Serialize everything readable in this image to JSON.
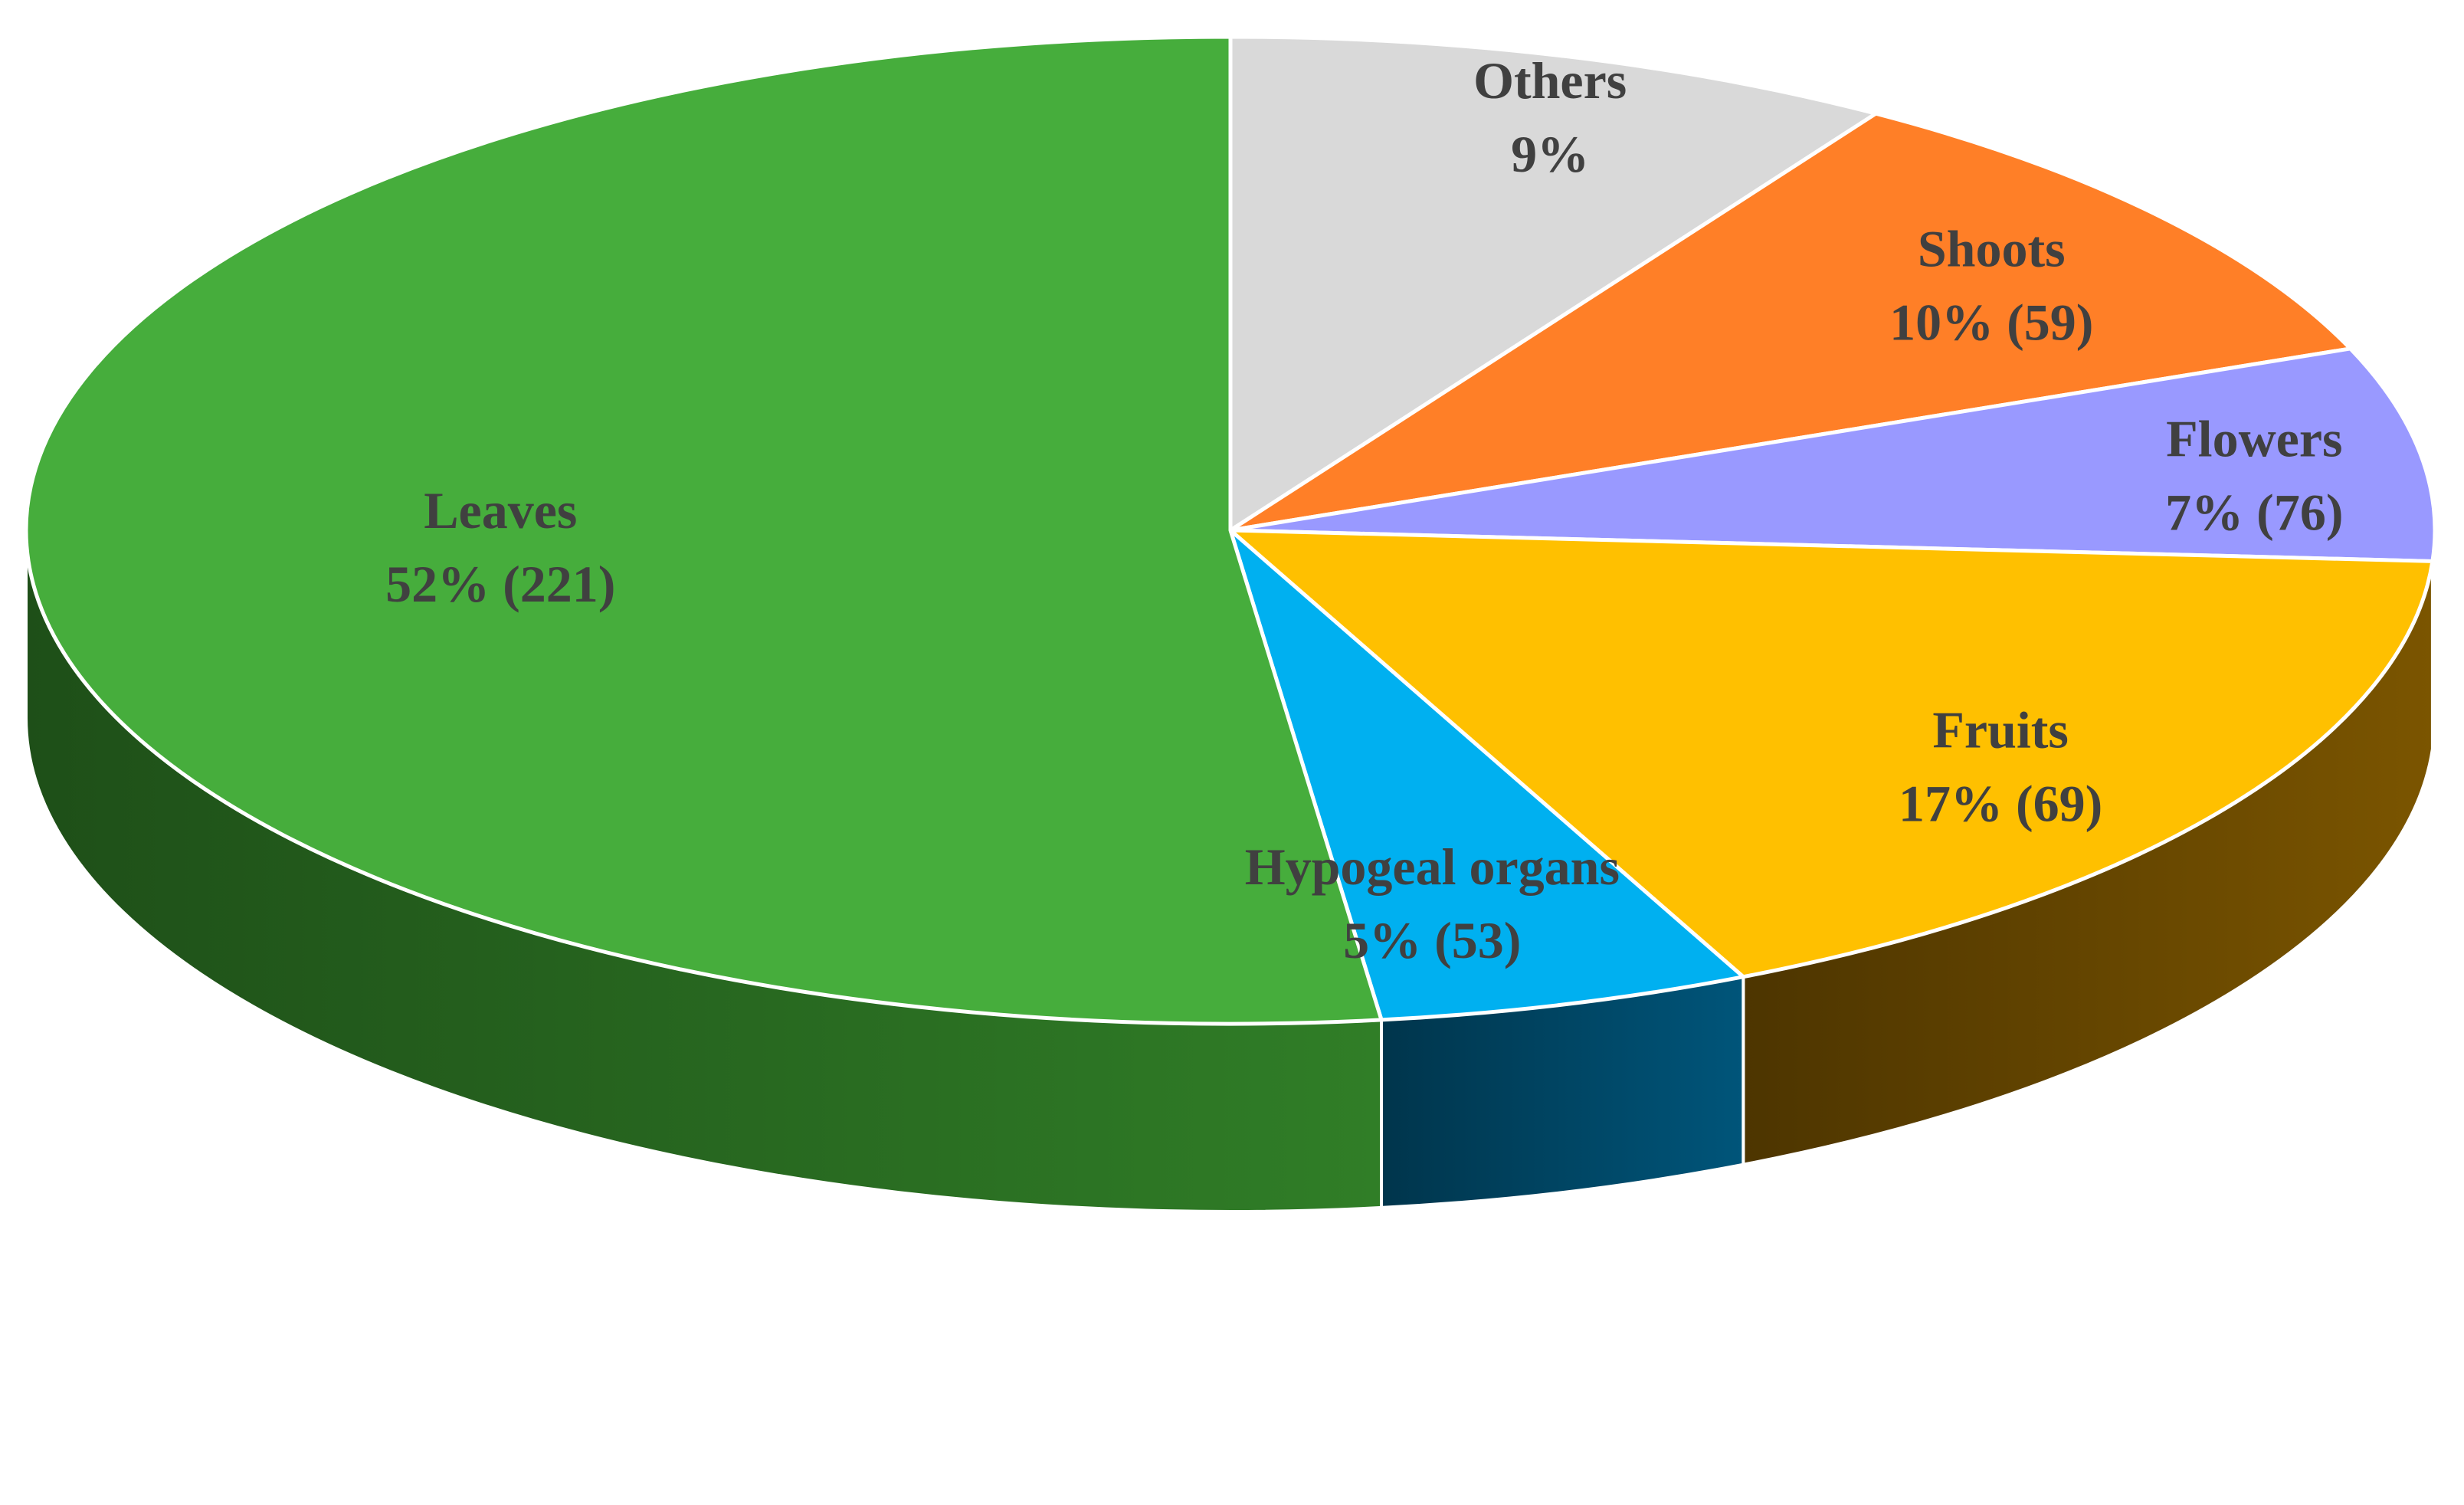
{
  "chart_data": {
    "type": "pie",
    "style": "3d",
    "title": "",
    "slices": [
      {
        "name": "Others",
        "percent": 9,
        "count": null,
        "label_line1": "Others",
        "label_line2": "9%",
        "color": "#D9D9D9",
        "side_color": "#9E9E9E"
      },
      {
        "name": "Shoots",
        "percent": 10,
        "count": 59,
        "label_line1": "Shoots",
        "label_line2": "10% (59)",
        "color": "#FF7F27",
        "side_color": "#A84F12"
      },
      {
        "name": "Flowers",
        "percent": 7,
        "count": 76,
        "label_line1": "Flowers",
        "label_line2": "7% (76)",
        "color": "#9999FF",
        "side_color": "#5B5BA8"
      },
      {
        "name": "Fruits",
        "percent": 17,
        "count": 69,
        "label_line1": "Fruits",
        "label_line2": "17% (69)",
        "color": "#FFC000",
        "side_color": "#6B4A00"
      },
      {
        "name": "Hypogeal organs",
        "percent": 5,
        "count": 53,
        "label_line1": "Hypogeal organs",
        "label_line2": "5% (53)",
        "color": "#00B0F0",
        "side_color": "#004A6A"
      },
      {
        "name": "Leaves",
        "percent": 52,
        "count": 221,
        "label_line1": "Leaves",
        "label_line2": "52% (221)",
        "color": "#46AD3C",
        "side_color": "#2A6E22"
      }
    ]
  }
}
